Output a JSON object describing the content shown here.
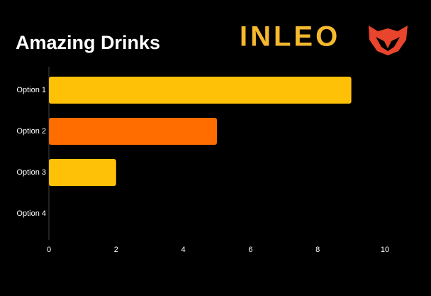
{
  "chart_data": {
    "type": "bar",
    "orientation": "horizontal",
    "title": "Amazing Drinks",
    "logo": "INLEO",
    "categories": [
      "Option 1",
      "Option 2",
      "Option 3",
      "Option 4"
    ],
    "values": [
      9,
      5,
      2,
      0
    ],
    "colors": [
      "#ffc107",
      "#ff6d00",
      "#ffc107",
      "#ffc107"
    ],
    "xlim": [
      0,
      10
    ],
    "xticks": [
      0,
      2,
      4,
      6,
      8,
      10
    ],
    "grid": false
  }
}
